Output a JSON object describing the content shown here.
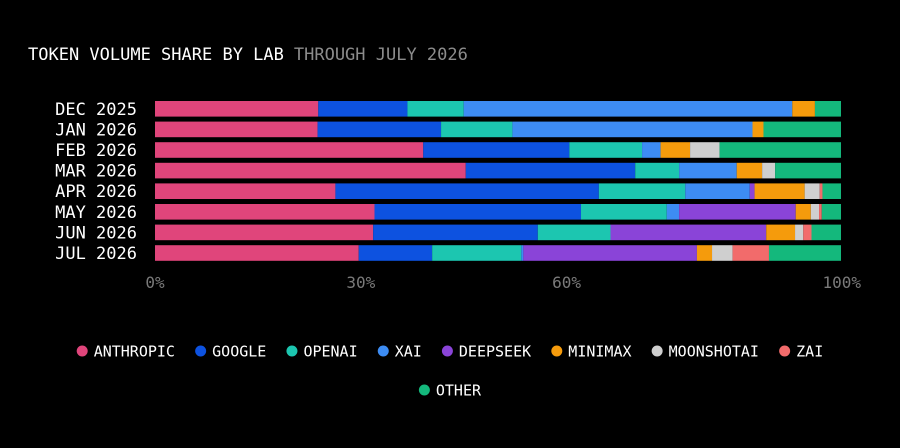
{
  "chart_data": {
    "type": "bar",
    "orientation": "horizontal",
    "stacked": true,
    "title": "TOKEN VOLUME SHARE BY LAB",
    "subtitle": "THROUGH JULY 2026",
    "categories": [
      "DEC 2025",
      "JAN 2026",
      "FEB 2026",
      "MAR 2026",
      "APR 2026",
      "MAY 2026",
      "JUN 2026",
      "JUL 2026"
    ],
    "xlim": [
      0,
      100
    ],
    "xticks": [
      0,
      30,
      60,
      100
    ],
    "xtick_labels": [
      "0%",
      "30%",
      "60%",
      "100%"
    ],
    "grid": false,
    "legend_position": "bottom",
    "series": [
      {
        "name": "ANTHROPIC",
        "color": "#e0457b",
        "values": [
          23.8,
          23.7,
          39.1,
          45.3,
          26.3,
          32.0,
          31.8,
          29.7
        ]
      },
      {
        "name": "GOOGLE",
        "color": "#0d52e0",
        "values": [
          13.0,
          18.0,
          21.3,
          24.7,
          38.4,
          30.1,
          24.0,
          10.7
        ]
      },
      {
        "name": "OPENAI",
        "color": "#1cc6b0",
        "values": [
          8.2,
          10.4,
          10.6,
          6.4,
          12.6,
          12.5,
          10.6,
          13.0
        ]
      },
      {
        "name": "XAI",
        "color": "#3d8cf3",
        "values": [
          47.9,
          35.0,
          2.7,
          8.4,
          9.4,
          1.8,
          0.0,
          0.3
        ]
      },
      {
        "name": "DEEPSEEK",
        "color": "#8a44d8",
        "values": [
          0.0,
          0.0,
          0.0,
          0.0,
          0.7,
          17.0,
          22.7,
          25.3
        ]
      },
      {
        "name": "MINIMAX",
        "color": "#f59b0c",
        "values": [
          3.3,
          1.6,
          4.3,
          3.7,
          7.3,
          2.2,
          4.2,
          2.2
        ]
      },
      {
        "name": "MOONSHOTAI",
        "color": "#cfcfcf",
        "values": [
          0.0,
          0.0,
          4.3,
          1.9,
          2.2,
          1.2,
          1.2,
          3.0
        ]
      },
      {
        "name": "ZAI",
        "color": "#f26b6b",
        "values": [
          0.0,
          0.0,
          0.0,
          0.0,
          0.4,
          0.4,
          1.2,
          5.3
        ]
      },
      {
        "name": "OTHER",
        "color": "#14b87c",
        "values": [
          3.8,
          11.3,
          17.7,
          9.6,
          2.7,
          2.8,
          4.3,
          10.5
        ]
      }
    ]
  }
}
